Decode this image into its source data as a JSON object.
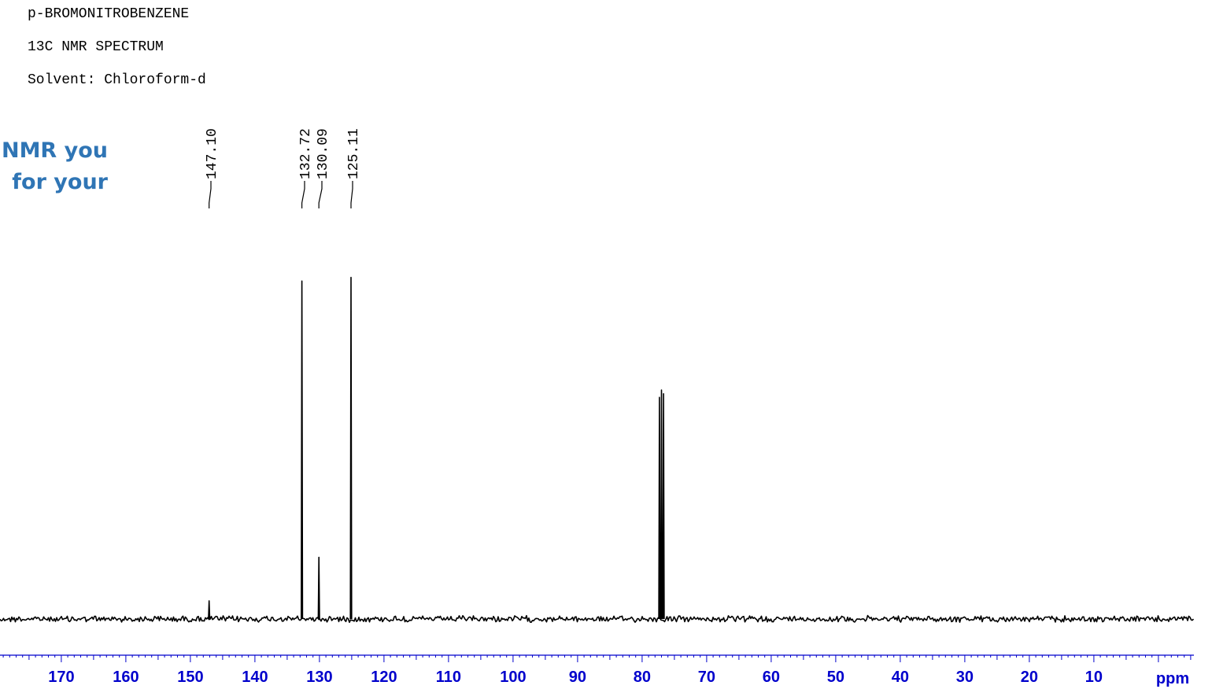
{
  "header": {
    "compound": "p-BROMONITROBENZENE",
    "experiment": "13C NMR SPECTRUM",
    "solvent": "Solvent: Chloroform-d"
  },
  "watermark": {
    "line1": "NMR you",
    "line2": "for  your"
  },
  "chart_data": {
    "type": "line",
    "title": "",
    "xlabel": "ppm",
    "ylabel": "",
    "x_reversed": true,
    "xlim": [
      179.5,
      -5.5
    ],
    "x_ticks": [
      170,
      160,
      150,
      140,
      130,
      120,
      110,
      100,
      90,
      80,
      70,
      60,
      50,
      40,
      30,
      20,
      10
    ],
    "x_tick_labels": [
      "170",
      "160",
      "150",
      "140",
      "130",
      "120",
      "110",
      "100",
      "90",
      "80",
      "70",
      "60",
      "50",
      "40",
      "30",
      "20",
      "10"
    ],
    "axis_unit_label": "ppm",
    "grid": false,
    "peak_labels": [
      "147.10",
      "132.72",
      "130.09",
      "125.11"
    ],
    "peaks": [
      {
        "ppm": 147.1,
        "intensity": 0.05
      },
      {
        "ppm": 132.72,
        "intensity": 0.93
      },
      {
        "ppm": 130.09,
        "intensity": 0.17
      },
      {
        "ppm": 125.11,
        "intensity": 0.94
      },
      {
        "ppm": 77.32,
        "intensity": 0.61
      },
      {
        "ppm": 77.0,
        "intensity": 0.63
      },
      {
        "ppm": 76.68,
        "intensity": 0.62
      }
    ]
  }
}
